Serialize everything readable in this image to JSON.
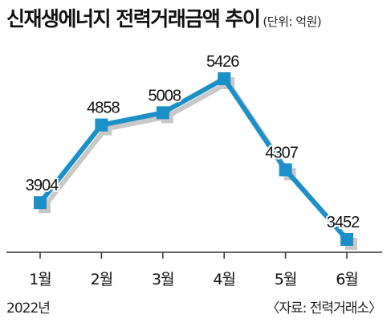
{
  "title": "신재생에너지 전력거래금액 추이",
  "unit_note": "(단위: 억원)",
  "year_label": "2022년",
  "source": "〈자료: 전력거래소〉",
  "colors": {
    "line": "#1a8fc8",
    "marker": "#1a8fc8",
    "shadow": "#c8c8c8",
    "text": "#111111",
    "axis": "#333333"
  },
  "chart_data": {
    "type": "line",
    "categories": [
      "1월",
      "2월",
      "3월",
      "4월",
      "5월",
      "6월"
    ],
    "values": [
      3904,
      4858,
      5008,
      5426,
      4307,
      3452
    ],
    "data_labels": [
      "3904",
      "4858",
      "5008",
      "5426",
      "4307",
      "3452"
    ],
    "title": "신재생에너지 전력거래금액 추이",
    "xlabel": "",
    "ylabel": "",
    "grid": false,
    "legend": "none"
  }
}
